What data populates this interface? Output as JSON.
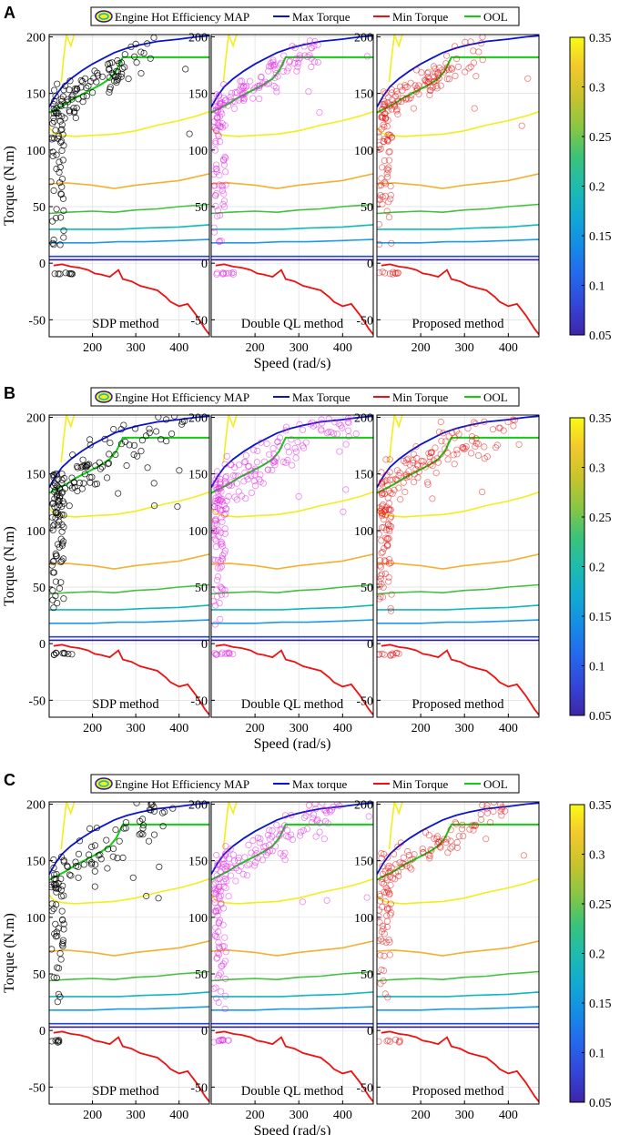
{
  "chart_data": [
    {
      "type": "scatter",
      "panel_label": "A",
      "legend": [
        "Engine Hot Efficiency MAP",
        "Max Torque",
        "Min Torque",
        "OOL"
      ],
      "xlabel": "Speed (rad/s)",
      "ylabel": "Torque (N.m)",
      "xlim": [
        100,
        470
      ],
      "ylim": [
        -65,
        202
      ],
      "x_ticks": [
        200,
        300,
        400
      ],
      "y_ticks": [
        -50,
        0,
        50,
        100,
        150,
        200
      ],
      "colorbar": {
        "ticks": [
          "0.05",
          "0.1",
          "0.15",
          "0.2",
          "0.25",
          "0.3",
          "0.35"
        ],
        "range": [
          0.05,
          0.35
        ]
      },
      "subplots": [
        {
          "method": "SDP method",
          "marker_color": "#000000",
          "density": 1.0
        },
        {
          "method": "Double QL method",
          "marker_color": "#e020e0",
          "density": 1.2
        },
        {
          "method": "Proposed method",
          "marker_color": "#e01010",
          "density": 1.2
        }
      ],
      "spread": 0.5
    },
    {
      "type": "scatter",
      "panel_label": "B",
      "legend": [
        "Engine Hot Efficiency MAP",
        "Max Torque",
        "Min Torque",
        "OOL"
      ],
      "xlabel": "Speed (rad/s)",
      "ylabel": "Torque (N.m)",
      "xlim": [
        100,
        470
      ],
      "ylim": [
        -65,
        202
      ],
      "x_ticks": [
        200,
        300,
        400
      ],
      "y_ticks": [
        -50,
        0,
        50,
        100,
        150,
        200
      ],
      "colorbar": {
        "ticks": [
          "0.05",
          "0.1",
          "0.15",
          "0.2",
          "0.25",
          "0.3",
          "0.35"
        ],
        "range": [
          0.05,
          0.35
        ]
      },
      "subplots": [
        {
          "method": "SDP method",
          "marker_color": "#000000",
          "density": 1.1
        },
        {
          "method": "Double QL method",
          "marker_color": "#e020e0",
          "density": 1.5
        },
        {
          "method": "Proposed method",
          "marker_color": "#e01010",
          "density": 1.4
        }
      ],
      "spread": 1.0
    },
    {
      "type": "scatter",
      "panel_label": "C",
      "legend": [
        "Engine Hot Efficiency MAP",
        "Max torque",
        "Min Torque",
        "OOL"
      ],
      "xlabel": "Speed (rad/s)",
      "ylabel": "Torque (N.m)",
      "xlim": [
        100,
        470
      ],
      "ylim": [
        -65,
        202
      ],
      "x_ticks": [
        200,
        300,
        400
      ],
      "y_ticks": [
        -50,
        0,
        50,
        100,
        150,
        200
      ],
      "colorbar": {
        "ticks": [
          "0.05",
          "0.1",
          "0.15",
          "0.2",
          "0.25",
          "0.3",
          "0.35"
        ],
        "range": [
          0.05,
          0.35
        ]
      },
      "subplots": [
        {
          "method": "SDP method",
          "marker_color": "#000000",
          "density": 0.8
        },
        {
          "method": "Double QL method",
          "marker_color": "#e020e0",
          "density": 1.3
        },
        {
          "method": "Proposed method",
          "marker_color": "#e01010",
          "density": 1.0
        }
      ],
      "spread": 0.8
    }
  ],
  "map_curves": {
    "max_torque": {
      "color": "#0a14d0",
      "x": [
        100,
        115,
        130,
        150,
        175,
        200,
        225,
        250,
        280,
        310,
        350,
        400,
        440,
        470
      ],
      "y": [
        138,
        148,
        156,
        163,
        170,
        176,
        181,
        186,
        190,
        193,
        196,
        198,
        200,
        201
      ]
    },
    "min_torque": {
      "color": "#ee1111",
      "x": [
        110,
        130,
        150,
        170,
        190,
        205,
        220,
        240,
        260,
        270,
        290,
        310,
        330,
        350,
        370,
        380,
        400,
        420,
        440,
        460,
        470
      ],
      "y": [
        -2,
        -1,
        -3,
        -4,
        -6,
        -9,
        -10,
        -12,
        -6,
        -14,
        -16,
        -20,
        -22,
        -24,
        -30,
        -34,
        -38,
        -36,
        -46,
        -58,
        -63
      ]
    },
    "ool": {
      "color": "#11cc11",
      "x": [
        100,
        120,
        140,
        160,
        180,
        200,
        220,
        240,
        255,
        270,
        300,
        350,
        400,
        470
      ],
      "y": [
        133,
        137,
        141,
        146,
        150,
        154,
        158,
        163,
        170,
        182,
        182,
        182,
        182,
        182
      ]
    },
    "contours": [
      {
        "color": "#f2ee1a",
        "x": [
          100,
          110,
          130,
          160,
          200,
          250,
          300,
          350,
          400,
          440,
          470
        ],
        "y": [
          120,
          115,
          113,
          112,
          113,
          114,
          117,
          122,
          126,
          130,
          134
        ]
      },
      {
        "color": "#f2ee1a",
        "x": [
          128,
          133,
          140,
          150,
          158
        ],
        "y": [
          160,
          180,
          202,
          192,
          202
        ]
      },
      {
        "color": "#f5b030",
        "x": [
          100,
          140,
          200,
          250,
          300,
          350,
          400,
          470
        ],
        "y": [
          70,
          71,
          69,
          66,
          69,
          71,
          73,
          79
        ]
      },
      {
        "color": "#44c040",
        "x": [
          100,
          140,
          200,
          250,
          300,
          350,
          400,
          470
        ],
        "y": [
          44,
          45,
          46,
          45,
          47,
          48,
          50,
          52
        ]
      },
      {
        "color": "#11b8b8",
        "x": [
          100,
          140,
          200,
          260,
          320,
          400,
          470
        ],
        "y": [
          30,
          30,
          30,
          30,
          31,
          32,
          34
        ]
      },
      {
        "color": "#1a9ae8",
        "x": [
          100,
          140,
          200,
          260,
          320,
          400,
          470
        ],
        "y": [
          18,
          18,
          18,
          19,
          19,
          20,
          21
        ]
      },
      {
        "color": "#2244dd",
        "x": [
          100,
          470
        ],
        "y": [
          6,
          6
        ]
      },
      {
        "color": "#2e1a90",
        "x": [
          100,
          470
        ],
        "y": [
          3,
          3
        ]
      }
    ]
  }
}
